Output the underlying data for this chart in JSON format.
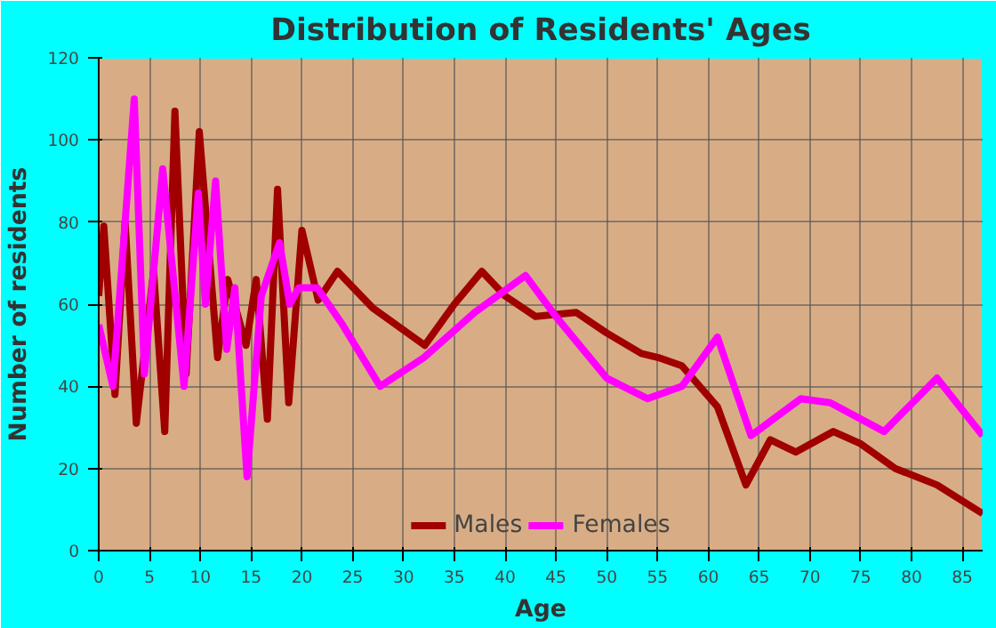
{
  "chart_data": {
    "type": "line",
    "title": "Distribution of Residents' Ages",
    "xlabel": "Age",
    "ylabel": "Number of residents",
    "xlim": [
      0,
      87
    ],
    "xticks": [
      0,
      5,
      10,
      15,
      20,
      25,
      30,
      35,
      40,
      45,
      50,
      55,
      60,
      65,
      70,
      75,
      80,
      85
    ],
    "ylim": [
      0,
      120
    ],
    "yticks": [
      0,
      20,
      40,
      60,
      80,
      100,
      120
    ],
    "grid": true,
    "legend": "bottom",
    "marker": "none",
    "line_style": "solid",
    "series": [
      {
        "name": "Males",
        "color": "#a00000",
        "x": [
          0,
          0.5,
          1.6,
          2.6,
          3.7,
          5.4,
          6.5,
          7.5,
          8.6,
          9.9,
          11.7,
          12.7,
          14.5,
          15.5,
          16.6,
          17.6,
          18.7,
          20,
          21.6,
          23.5,
          27,
          32.1,
          35,
          37.7,
          40,
          43,
          47,
          50,
          53.4,
          55.1,
          57.4,
          60.9,
          63.7,
          66.1,
          68.6,
          72.3,
          75,
          78.4,
          82.5,
          87
        ],
        "values": [
          62,
          79,
          38,
          80,
          31,
          68,
          29,
          107,
          43,
          102,
          47,
          66,
          50,
          66,
          32,
          88,
          36,
          78,
          61,
          68,
          59,
          50,
          60,
          68,
          62,
          57,
          58,
          53,
          48,
          47,
          45,
          35,
          16,
          27,
          24,
          29,
          26,
          20,
          16,
          9
        ]
      },
      {
        "name": "Females",
        "color": "#ff00ff",
        "x": [
          0,
          1.4,
          3.5,
          4.5,
          6.3,
          8.4,
          9.8,
          10.5,
          11.5,
          12.6,
          13.4,
          14.6,
          16,
          17.8,
          18.8,
          19.7,
          21.5,
          24,
          27.7,
          32,
          37,
          42,
          45,
          50,
          54,
          57.4,
          60.9,
          64.2,
          69.1,
          72,
          77.3,
          82.5,
          87
        ],
        "values": [
          55,
          40,
          110,
          43,
          93,
          40,
          87,
          60,
          90,
          49,
          64,
          18,
          62,
          75,
          60,
          64,
          64,
          55,
          40,
          47,
          58,
          67,
          57,
          42,
          37,
          40,
          52,
          28,
          37,
          36,
          29,
          42,
          28
        ]
      }
    ]
  }
}
